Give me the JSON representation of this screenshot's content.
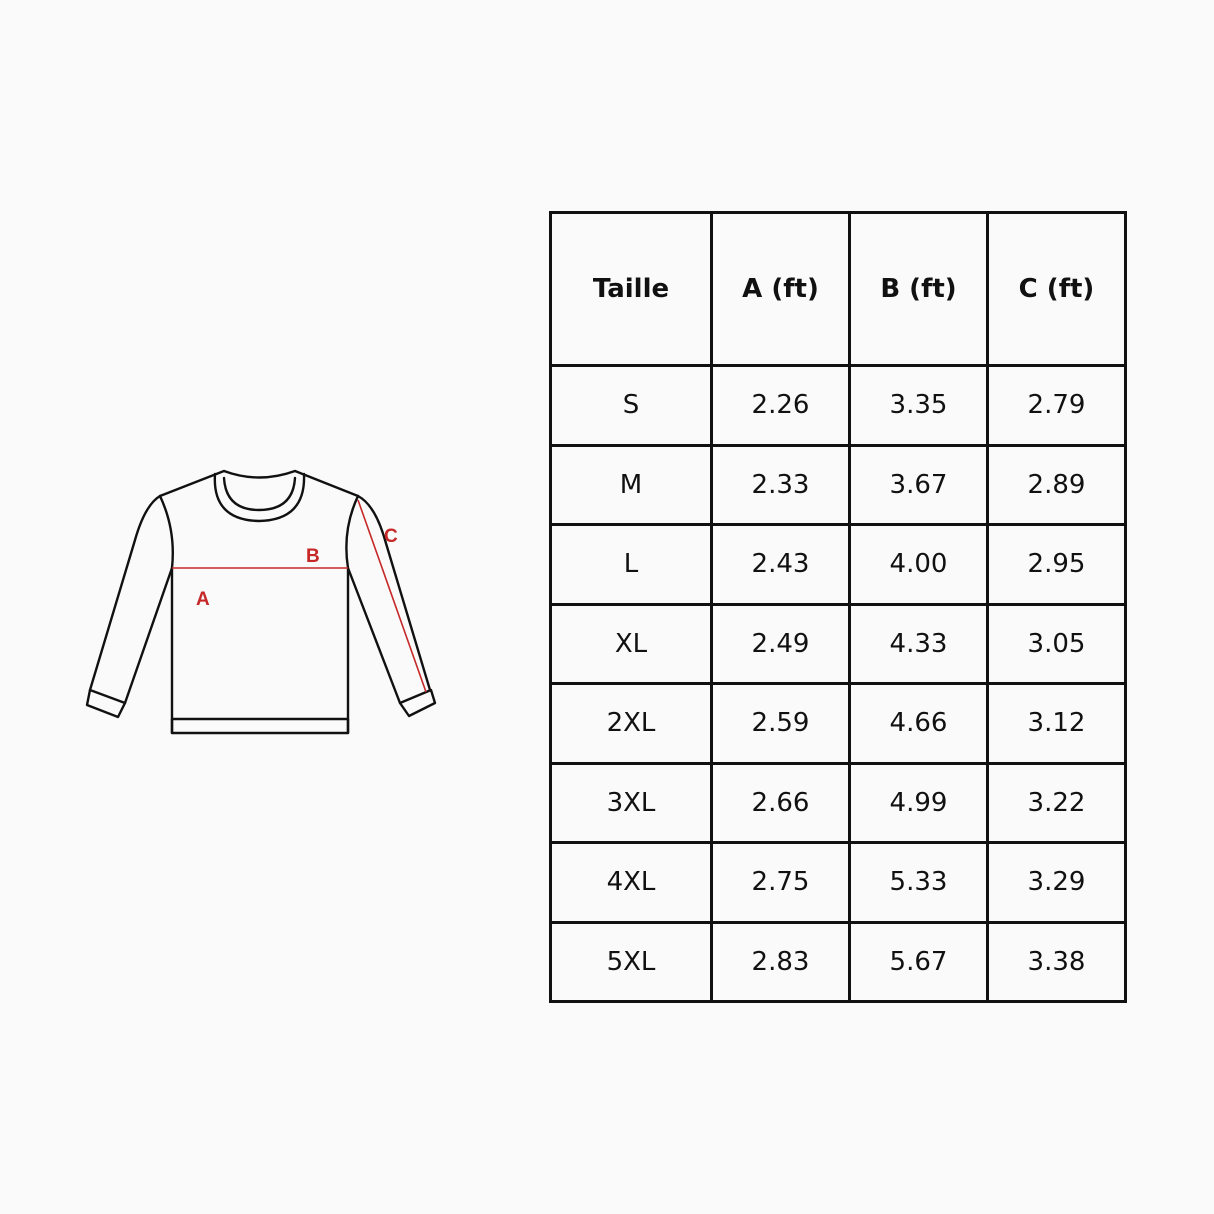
{
  "diagram": {
    "labels": {
      "a": "A",
      "b": "B",
      "c": "C"
    },
    "accent_color": "#c62828",
    "line_color": "#111111"
  },
  "table": {
    "headers": [
      "Taille",
      "A (ft)",
      "B (ft)",
      "C (ft)"
    ],
    "rows": [
      [
        "S",
        "2.26",
        "3.35",
        "2.79"
      ],
      [
        "M",
        "2.33",
        "3.67",
        "2.89"
      ],
      [
        "L",
        "2.43",
        "4.00",
        "2.95"
      ],
      [
        "XL",
        "2.49",
        "4.33",
        "3.05"
      ],
      [
        "2XL",
        "2.59",
        "4.66",
        "3.12"
      ],
      [
        "3XL",
        "2.66",
        "4.99",
        "3.22"
      ],
      [
        "4XL",
        "2.75",
        "5.33",
        "3.29"
      ],
      [
        "5XL",
        "2.83",
        "5.67",
        "3.38"
      ]
    ]
  }
}
